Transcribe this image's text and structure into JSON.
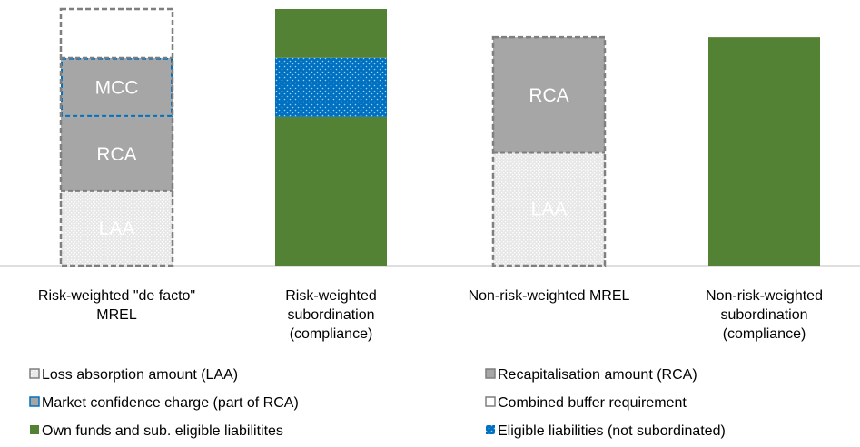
{
  "chart_data": {
    "type": "stacked-bar",
    "ylim": [
      0,
      100
    ],
    "series": [
      {
        "name": "Loss absorption amount (LAA)",
        "color": "#d9d9d9",
        "style": "dotted",
        "border": "#7f7f7f"
      },
      {
        "name": "Recapitalisation amount (RCA)",
        "color": "#a6a6a6",
        "style": "solid",
        "border": "#7f7f7f"
      },
      {
        "name": "Market confidence charge (part of RCA)",
        "color": "#a6a6a6",
        "style": "solid",
        "border": "#0070c0"
      },
      {
        "name": "Combined buffer requirement",
        "color": "#ffffff",
        "style": "solid",
        "border": "#7f7f7f"
      },
      {
        "name": "Own funds and sub. eligible liabilitites",
        "color": "#548235",
        "style": "solid"
      },
      {
        "name": "Eligible liabilities (not subordinated)",
        "color": "#0070c0",
        "style": "dots"
      }
    ],
    "bars": [
      {
        "category": [
          "Risk-weighted \"de facto\"",
          "MREL"
        ],
        "outline": true,
        "segments": [
          {
            "series": 0,
            "value": 29,
            "label": "LAA"
          },
          {
            "series": 1,
            "value": 29,
            "label": "RCA"
          },
          {
            "series": 2,
            "value": 23,
            "label": "MCC"
          },
          {
            "series": 3,
            "value": 19
          }
        ]
      },
      {
        "category": [
          "Risk-weighted",
          "subordination",
          "(compliance)"
        ],
        "outline": false,
        "segments": [
          {
            "series": 4,
            "value": 58
          },
          {
            "series": 5,
            "value": 23
          },
          {
            "series": 4,
            "value": 19
          }
        ]
      },
      {
        "category": [
          "Non-risk-weighted MREL"
        ],
        "outline": true,
        "segments": [
          {
            "series": 0,
            "value": 44,
            "label": "LAA"
          },
          {
            "series": 1,
            "value": 45,
            "label": "RCA"
          }
        ]
      },
      {
        "category": [
          "Non-risk-weighted",
          "subordination",
          "(compliance)"
        ],
        "outline": false,
        "segments": [
          {
            "series": 4,
            "value": 89
          }
        ]
      }
    ]
  }
}
